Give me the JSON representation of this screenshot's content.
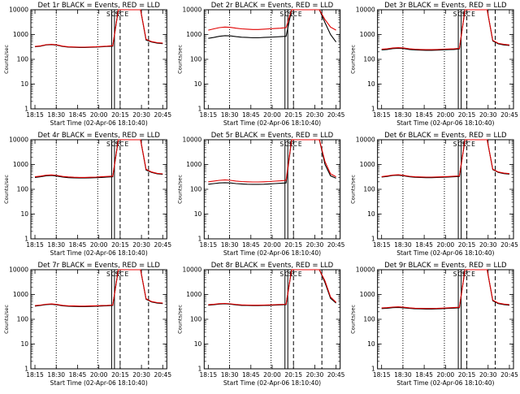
{
  "figure": {
    "colors": {
      "events": "#000000",
      "lld": "#e00000",
      "background": "#ffffff"
    }
  },
  "chart_data": [
    {
      "type": "line",
      "title": "Det 1r BLACK = Events, RED = LLD",
      "xlabel": "Start Time (02-Apr-06 18:10:40)",
      "ylabel": "Counts/sec",
      "yscale": "log",
      "ylim": [
        1,
        10000
      ],
      "xlim": [
        "18:10",
        "20:50"
      ],
      "xticks": [
        "18:15",
        "18:30",
        "18:45",
        "20:00",
        "20:15",
        "20:30",
        "20:45"
      ],
      "yticks": [
        "1",
        "10",
        "100",
        "1000",
        "10000"
      ],
      "markers": {
        "dotted": [
          "18:30",
          "19:56"
        ],
        "solid": [
          "20:09",
          "20:11"
        ],
        "dashed": [
          "20:15",
          "20:35"
        ]
      },
      "annotations": [
        "S",
        "C",
        "E",
        "S",
        "C",
        "E"
      ],
      "series": [
        {
          "name": "Events",
          "color": "#000000",
          "values": [
            320,
            340,
            380,
            390,
            370,
            330,
            310,
            305,
            300,
            300,
            305,
            310,
            320,
            330,
            340,
            10000,
            10000,
            10000,
            10000,
            10000,
            600,
            500,
            450,
            430
          ]
        },
        {
          "name": "LLD",
          "color": "#e00000",
          "values": [
            330,
            350,
            390,
            400,
            380,
            340,
            320,
            315,
            310,
            310,
            315,
            320,
            330,
            340,
            355,
            10000,
            10000,
            10000,
            10000,
            10000,
            640,
            520,
            470,
            450
          ]
        }
      ]
    },
    {
      "type": "line",
      "title": "Det 2r BLACK = Events, RED = LLD",
      "xlabel": "Start Time (02-Apr-06 18:10:40)",
      "ylabel": "Counts/sec",
      "yscale": "log",
      "ylim": [
        1,
        10000
      ],
      "xlim": [
        "18:10",
        "20:50"
      ],
      "xticks": [
        "18:15",
        "18:30",
        "18:45",
        "20:00",
        "20:15",
        "20:30",
        "20:45"
      ],
      "yticks": [
        "1",
        "10",
        "100",
        "1000",
        "10000"
      ],
      "markers": {
        "dotted": [
          "18:30",
          "19:56"
        ],
        "solid": [
          "20:09",
          "20:11"
        ],
        "dashed": [
          "20:15",
          "20:35"
        ]
      },
      "annotations": [
        "S",
        "C",
        "E",
        "S",
        "C",
        "E"
      ],
      "series": [
        {
          "name": "Events",
          "color": "#000000",
          "values": [
            700,
            760,
            850,
            900,
            880,
            820,
            780,
            760,
            740,
            740,
            760,
            780,
            800,
            820,
            850,
            10000,
            10000,
            10000,
            10000,
            10000,
            10000,
            3000,
            1000,
            500
          ]
        },
        {
          "name": "LLD",
          "color": "#e00000",
          "values": [
            1500,
            1700,
            1900,
            2000,
            1950,
            1800,
            1700,
            1650,
            1600,
            1600,
            1650,
            1700,
            1750,
            1800,
            1900,
            10000,
            10000,
            10000,
            10000,
            10000,
            10000,
            4000,
            2000,
            1500
          ]
        }
      ]
    },
    {
      "type": "line",
      "title": "Det 3r BLACK = Events, RED = LLD",
      "xlabel": "Start Time (02-Apr-06 18:10:40)",
      "ylabel": "Counts/sec",
      "yscale": "log",
      "ylim": [
        1,
        10000
      ],
      "xlim": [
        "18:10",
        "20:50"
      ],
      "xticks": [
        "18:15",
        "18:30",
        "18:45",
        "20:00",
        "20:15",
        "20:30",
        "20:45"
      ],
      "yticks": [
        "1",
        "10",
        "100",
        "1000",
        "10000"
      ],
      "markers": {
        "dotted": [
          "18:30",
          "19:56"
        ],
        "solid": [
          "20:09",
          "20:11"
        ],
        "dashed": [
          "20:15",
          "20:35"
        ]
      },
      "annotations": [
        "S",
        "C",
        "E",
        "S",
        "C",
        "E"
      ],
      "series": [
        {
          "name": "Events",
          "color": "#000000",
          "values": [
            240,
            250,
            270,
            280,
            270,
            250,
            240,
            235,
            230,
            230,
            235,
            240,
            245,
            250,
            260,
            10000,
            10000,
            10000,
            10000,
            10000,
            550,
            420,
            380,
            360
          ]
        },
        {
          "name": "LLD",
          "color": "#e00000",
          "values": [
            255,
            265,
            285,
            295,
            285,
            265,
            255,
            250,
            245,
            245,
            250,
            255,
            260,
            265,
            275,
            10000,
            10000,
            10000,
            10000,
            10000,
            580,
            440,
            400,
            380
          ]
        }
      ]
    },
    {
      "type": "line",
      "title": "Det 4r BLACK = Events, RED = LLD",
      "xlabel": "Start Time (02-Apr-06 18:10:40)",
      "ylabel": "Counts/sec",
      "yscale": "log",
      "ylim": [
        1,
        10000
      ],
      "xlim": [
        "18:10",
        "20:50"
      ],
      "xticks": [
        "18:15",
        "18:30",
        "18:45",
        "20:00",
        "20:15",
        "20:30",
        "20:45"
      ],
      "yticks": [
        "1",
        "10",
        "100",
        "1000",
        "10000"
      ],
      "markers": {
        "dotted": [
          "18:30",
          "19:56"
        ],
        "solid": [
          "20:09",
          "20:11"
        ],
        "dashed": [
          "20:15",
          "20:35"
        ]
      },
      "annotations": [
        "S",
        "C",
        "E",
        "S",
        "C",
        "E"
      ],
      "series": [
        {
          "name": "Events",
          "color": "#000000",
          "values": [
            300,
            320,
            350,
            360,
            340,
            310,
            295,
            290,
            285,
            285,
            290,
            295,
            300,
            310,
            320,
            10000,
            10000,
            10000,
            10000,
            10000,
            600,
            480,
            420,
            400
          ]
        },
        {
          "name": "LLD",
          "color": "#e00000",
          "values": [
            320,
            340,
            370,
            380,
            360,
            330,
            315,
            305,
            300,
            300,
            305,
            310,
            320,
            330,
            340,
            10000,
            10000,
            10000,
            10000,
            10000,
            640,
            500,
            440,
            420
          ]
        }
      ]
    },
    {
      "type": "line",
      "title": "Det 5r BLACK = Events, RED = LLD",
      "xlabel": "Start Time (02-Apr-06 18:10:40)",
      "ylabel": "Counts/sec",
      "yscale": "log",
      "ylim": [
        1,
        10000
      ],
      "xlim": [
        "18:10",
        "20:50"
      ],
      "xticks": [
        "18:15",
        "18:30",
        "18:45",
        "20:00",
        "20:15",
        "20:30",
        "20:45"
      ],
      "yticks": [
        "1",
        "10",
        "100",
        "1000",
        "10000"
      ],
      "markers": {
        "dotted": [
          "18:30",
          "19:56"
        ],
        "solid": [
          "20:09",
          "20:11"
        ],
        "dashed": [
          "20:15",
          "20:35"
        ]
      },
      "annotations": [
        "S",
        "C",
        "E",
        "S",
        "C",
        "E"
      ],
      "series": [
        {
          "name": "Events",
          "color": "#000000",
          "values": [
            160,
            170,
            180,
            185,
            180,
            170,
            165,
            160,
            158,
            158,
            160,
            165,
            170,
            175,
            180,
            10000,
            10000,
            10000,
            10000,
            10000,
            10000,
            1000,
            350,
            280
          ]
        },
        {
          "name": "LLD",
          "color": "#e00000",
          "values": [
            200,
            215,
            230,
            240,
            230,
            215,
            205,
            200,
            198,
            198,
            200,
            205,
            212,
            220,
            230,
            10000,
            10000,
            10000,
            10000,
            10000,
            10000,
            1300,
            420,
            320
          ]
        }
      ]
    },
    {
      "type": "line",
      "title": "Det 6r BLACK = Events, RED = LLD",
      "xlabel": "Start Time (02-Apr-06 18:10:40)",
      "ylabel": "Counts/sec",
      "yscale": "log",
      "ylim": [
        1,
        10000
      ],
      "xlim": [
        "18:10",
        "20:50"
      ],
      "xticks": [
        "18:15",
        "18:30",
        "18:45",
        "20:00",
        "20:15",
        "20:30",
        "20:45"
      ],
      "yticks": [
        "1",
        "10",
        "100",
        "1000",
        "10000"
      ],
      "markers": {
        "dotted": [
          "18:30",
          "19:56"
        ],
        "solid": [
          "20:09",
          "20:11"
        ],
        "dashed": [
          "20:15",
          "20:35"
        ]
      },
      "annotations": [
        "S",
        "C",
        "E",
        "S",
        "C",
        "E"
      ],
      "series": [
        {
          "name": "Events",
          "color": "#000000",
          "values": [
            310,
            330,
            360,
            370,
            350,
            320,
            305,
            300,
            295,
            295,
            300,
            305,
            312,
            320,
            330,
            10000,
            10000,
            10000,
            10000,
            10000,
            620,
            480,
            430,
            410
          ]
        },
        {
          "name": "LLD",
          "color": "#e00000",
          "values": [
            325,
            345,
            375,
            385,
            365,
            335,
            320,
            315,
            310,
            310,
            315,
            320,
            328,
            336,
            348,
            10000,
            10000,
            10000,
            10000,
            10000,
            650,
            500,
            450,
            430
          ]
        }
      ]
    },
    {
      "type": "line",
      "title": "Det 7r BLACK = Events, RED = LLD",
      "xlabel": "Start Time (02-Apr-06 18:10:40)",
      "ylabel": "Counts/sec",
      "yscale": "log",
      "ylim": [
        1,
        10000
      ],
      "xlim": [
        "18:10",
        "20:50"
      ],
      "xticks": [
        "18:15",
        "18:30",
        "18:45",
        "20:00",
        "20:15",
        "20:30",
        "20:45"
      ],
      "yticks": [
        "1",
        "10",
        "100",
        "1000",
        "10000"
      ],
      "markers": {
        "dotted": [
          "18:30",
          "19:56"
        ],
        "solid": [
          "20:09",
          "20:11"
        ],
        "dashed": [
          "20:15",
          "20:35"
        ]
      },
      "annotations": [
        "S",
        "C",
        "E",
        "S",
        "C",
        "E"
      ],
      "series": [
        {
          "name": "Events",
          "color": "#000000",
          "values": [
            340,
            360,
            390,
            400,
            380,
            350,
            335,
            330,
            325,
            325,
            330,
            335,
            342,
            350,
            360,
            10000,
            10000,
            10000,
            10000,
            10000,
            640,
            500,
            450,
            430
          ]
        },
        {
          "name": "LLD",
          "color": "#e00000",
          "values": [
            355,
            375,
            405,
            415,
            395,
            365,
            350,
            345,
            340,
            340,
            345,
            350,
            357,
            365,
            375,
            10000,
            10000,
            10000,
            10000,
            10000,
            670,
            520,
            470,
            450
          ]
        }
      ]
    },
    {
      "type": "line",
      "title": "Det 8r BLACK = Events, RED = LLD",
      "xlabel": "Start Time (02-Apr-06 18:10:40)",
      "ylabel": "Counts/sec",
      "yscale": "log",
      "ylim": [
        1,
        10000
      ],
      "xlim": [
        "18:10",
        "20:50"
      ],
      "xticks": [
        "18:15",
        "18:30",
        "18:45",
        "20:00",
        "20:15",
        "20:30",
        "20:45"
      ],
      "yticks": [
        "1",
        "10",
        "100",
        "1000",
        "10000"
      ],
      "markers": {
        "dotted": [
          "18:30",
          "19:56"
        ],
        "solid": [
          "20:09",
          "20:11"
        ],
        "dashed": [
          "20:15",
          "20:35"
        ]
      },
      "annotations": [
        "S",
        "C",
        "E",
        "S",
        "C",
        "E"
      ],
      "series": [
        {
          "name": "Events",
          "color": "#000000",
          "values": [
            370,
            385,
            410,
            420,
            405,
            380,
            365,
            360,
            355,
            355,
            360,
            365,
            372,
            380,
            390,
            10000,
            10000,
            10000,
            10000,
            10000,
            10000,
            3000,
            700,
            450
          ]
        },
        {
          "name": "LLD",
          "color": "#e00000",
          "values": [
            385,
            400,
            425,
            435,
            420,
            395,
            380,
            375,
            370,
            370,
            375,
            380,
            387,
            395,
            405,
            10000,
            10000,
            10000,
            10000,
            10000,
            10000,
            3500,
            800,
            480
          ]
        }
      ]
    },
    {
      "type": "line",
      "title": "Det 9r BLACK = Events, RED = LLD",
      "xlabel": "Start Time (02-Apr-06 18:10:40)",
      "ylabel": "Counts/sec",
      "yscale": "log",
      "ylim": [
        1,
        10000
      ],
      "xlim": [
        "18:10",
        "20:50"
      ],
      "xticks": [
        "18:15",
        "18:30",
        "18:45",
        "20:00",
        "20:15",
        "20:30",
        "20:45"
      ],
      "yticks": [
        "1",
        "10",
        "100",
        "1000",
        "10000"
      ],
      "markers": {
        "dotted": [
          "18:30",
          "19:56"
        ],
        "solid": [
          "20:09",
          "20:11"
        ],
        "dashed": [
          "20:15",
          "20:35"
        ]
      },
      "annotations": [
        "S",
        "C",
        "E",
        "S",
        "C",
        "E"
      ],
      "series": [
        {
          "name": "Events",
          "color": "#000000",
          "values": [
            270,
            280,
            295,
            300,
            290,
            275,
            265,
            262,
            258,
            258,
            262,
            268,
            275,
            282,
            290,
            10000,
            10000,
            10000,
            10000,
            10000,
            560,
            430,
            390,
            370
          ]
        },
        {
          "name": "LLD",
          "color": "#e00000",
          "values": [
            285,
            295,
            310,
            318,
            305,
            290,
            280,
            276,
            272,
            272,
            276,
            282,
            289,
            296,
            305,
            10000,
            10000,
            10000,
            10000,
            10000,
            590,
            450,
            410,
            390
          ]
        }
      ]
    }
  ]
}
